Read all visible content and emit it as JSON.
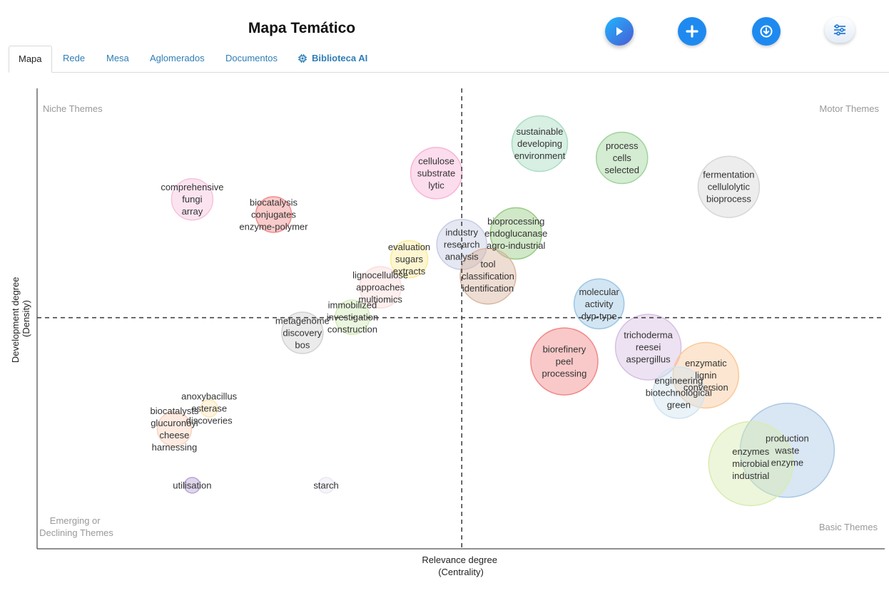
{
  "header": {
    "title": "Mapa Temático",
    "buttons": [
      {
        "name": "play-button",
        "icon": "play-icon"
      },
      {
        "name": "add-button",
        "icon": "plus-icon"
      },
      {
        "name": "download-button",
        "icon": "download-icon"
      },
      {
        "name": "settings-button",
        "icon": "sliders-icon"
      }
    ]
  },
  "tabs": [
    {
      "label": "Mapa",
      "active": true
    },
    {
      "label": "Rede",
      "active": false
    },
    {
      "label": "Mesa",
      "active": false
    },
    {
      "label": "Aglomerados",
      "active": false
    },
    {
      "label": "Documentos",
      "active": false
    },
    {
      "label": "Biblioteca AI",
      "active": false,
      "icon": "chip-icon"
    }
  ],
  "chart_data": {
    "type": "scatter",
    "xlabel": [
      "Relevance degree",
      "(Centrality)"
    ],
    "ylabel": [
      "Development degree",
      "(Density)"
    ],
    "quadrants": {
      "top_left": "Niche Themes",
      "top_right": "Motor Themes",
      "bottom_left": [
        "Emerging or",
        "Declining Themes"
      ],
      "bottom_right": "Basic Themes"
    },
    "xlim": [
      0,
      100
    ],
    "ylim": [
      0,
      100
    ],
    "x_mean": 50.1,
    "y_mean": 50.2,
    "clusters": [
      {
        "lines": [
          "sustainable",
          "developing",
          "environment"
        ],
        "x": 59.3,
        "y": 88.0,
        "size": 39,
        "color": "#a8dcc1"
      },
      {
        "lines": [
          "process",
          "cells",
          "selected"
        ],
        "x": 69.0,
        "y": 84.9,
        "size": 36,
        "color": "#9fd49b"
      },
      {
        "lines": [
          "fermentation",
          "cellulolytic",
          "bioprocess"
        ],
        "x": 81.6,
        "y": 78.6,
        "size": 43,
        "color": "#d6d6d6"
      },
      {
        "lines": [
          "cellulose",
          "substrate",
          "lytic"
        ],
        "x": 47.1,
        "y": 81.6,
        "size": 36,
        "color": "#f9b4d7"
      },
      {
        "lines": [
          "comprehensive",
          "fungi",
          "array"
        ],
        "x": 18.3,
        "y": 75.9,
        "size": 29,
        "color": "#f6c3dd"
      },
      {
        "lines": [
          "biocatalysis",
          "conjugates",
          "enzyme-polymer"
        ],
        "x": 27.9,
        "y": 72.6,
        "size": 25,
        "color": "#f28c8c"
      },
      {
        "lines": [
          "bioprocessing",
          "endoglucanase",
          "agro-industrial"
        ],
        "x": 56.5,
        "y": 68.5,
        "size": 36,
        "color": "#98cc84"
      },
      {
        "lines": [
          "industry",
          "research",
          "analysis"
        ],
        "x": 50.1,
        "y": 66.1,
        "size": 35,
        "color": "#c6cde4"
      },
      {
        "lines": [
          "evaluation",
          "sugars",
          "extracts"
        ],
        "x": 43.9,
        "y": 62.9,
        "size": 26,
        "color": "#faec98"
      },
      {
        "lines": [
          "tool",
          "classification",
          "identification"
        ],
        "x": 53.2,
        "y": 59.2,
        "size": 39,
        "color": "#d9b49d"
      },
      {
        "lines": [
          "lignocellulose",
          "approaches",
          "multiomics"
        ],
        "x": 40.5,
        "y": 56.8,
        "size": 29,
        "color": "#fcdcdc"
      },
      {
        "lines": [
          "molecular",
          "activity",
          "dyp-type"
        ],
        "x": 66.3,
        "y": 53.2,
        "size": 35,
        "color": "#9cc6e4"
      },
      {
        "lines": [
          "immobilized",
          "investigation",
          "construction"
        ],
        "x": 37.2,
        "y": 50.3,
        "size": 24,
        "color": "#d3ecb7"
      },
      {
        "lines": [
          "metagenome",
          "discovery",
          "bos"
        ],
        "x": 31.3,
        "y": 46.9,
        "size": 29,
        "color": "#d2d2d2"
      },
      {
        "lines": [
          "trichoderma",
          "reesei",
          "aspergillus"
        ],
        "x": 72.1,
        "y": 43.8,
        "size": 46,
        "color": "#d7bfe3"
      },
      {
        "lines": [
          "biorefinery",
          "peel",
          "processing"
        ],
        "x": 62.2,
        "y": 40.7,
        "size": 47,
        "color": "#f28888"
      },
      {
        "lines": [
          "enzymatic",
          "lignin",
          "conversion"
        ],
        "x": 78.9,
        "y": 37.7,
        "size": 46,
        "color": "#fbc898"
      },
      {
        "lines": [
          "engineering",
          "biotechnological",
          "green"
        ],
        "x": 75.7,
        "y": 33.9,
        "size": 36,
        "color": "#d0e4f0"
      },
      {
        "lines": [
          "anoxybacillus",
          "esterase",
          "discoveries"
        ],
        "x": 20.3,
        "y": 30.5,
        "size": 12,
        "color": "#fde6b8"
      },
      {
        "lines": [
          "biocatalysts",
          "glucuronoyl",
          "cheese",
          "harnessing"
        ],
        "x": 16.2,
        "y": 26.0,
        "size": 24,
        "color": "#fbd3bf"
      },
      {
        "lines": [
          "production",
          "waste",
          "enzyme"
        ],
        "x": 88.5,
        "y": 21.4,
        "size": 66,
        "color": "#aac8e4"
      },
      {
        "lines": [
          "enzymes",
          "microbial",
          "industrial"
        ],
        "x": 84.2,
        "y": 18.5,
        "size": 59,
        "color": "#d8ecb0"
      },
      {
        "lines": [
          "utilisation"
        ],
        "x": 18.3,
        "y": 13.8,
        "size": 11,
        "color": "#b9a5d4"
      },
      {
        "lines": [
          "starch"
        ],
        "x": 34.1,
        "y": 13.8,
        "size": 11,
        "color": "#ece6f2"
      }
    ]
  }
}
